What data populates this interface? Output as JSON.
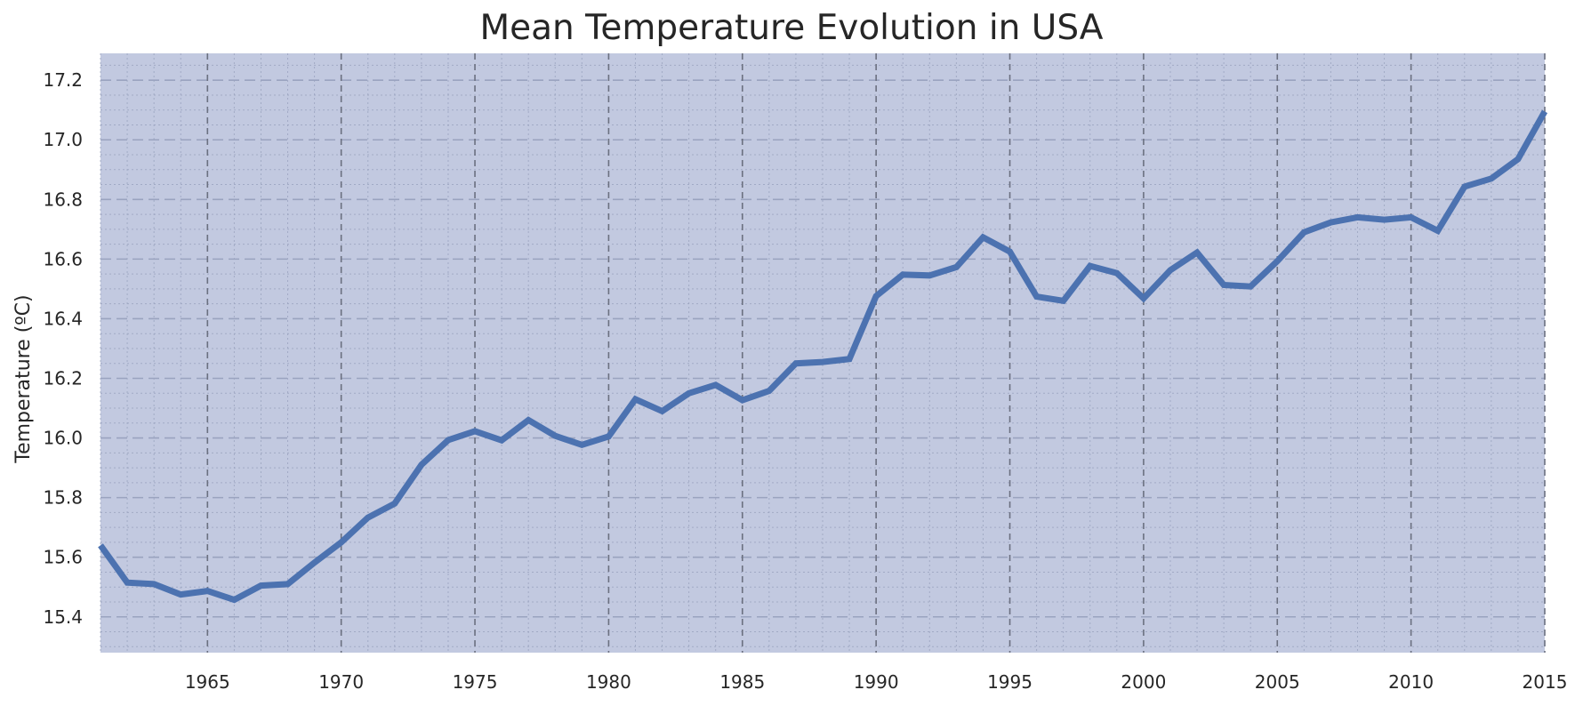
{
  "chart_data": {
    "type": "line",
    "title": "Mean Temperature Evolution in USA",
    "xlabel": "",
    "ylabel": "Temperature (ºC)",
    "xlim": [
      1961,
      2015
    ],
    "ylim": [
      15.28,
      17.29
    ],
    "x_ticks": [
      1965,
      1970,
      1975,
      1980,
      1985,
      1990,
      1995,
      2000,
      2005,
      2010,
      2015
    ],
    "y_ticks": [
      15.4,
      15.6,
      15.8,
      16.0,
      16.2,
      16.4,
      16.6,
      16.8,
      17.0,
      17.2
    ],
    "grid": true,
    "series": [
      {
        "name": "",
        "x": [
          1961,
          1962,
          1963,
          1964,
          1965,
          1966,
          1967,
          1968,
          1969,
          1970,
          1971,
          1972,
          1973,
          1974,
          1975,
          1976,
          1977,
          1978,
          1979,
          1980,
          1981,
          1982,
          1983,
          1984,
          1985,
          1986,
          1987,
          1988,
          1989,
          1990,
          1991,
          1992,
          1993,
          1994,
          1995,
          1996,
          1997,
          1998,
          1999,
          2000,
          2001,
          2002,
          2003,
          2004,
          2005,
          2006,
          2007,
          2008,
          2009,
          2010,
          2011,
          2012,
          2013,
          2014,
          2015
        ],
        "y": [
          15.64,
          15.515,
          15.51,
          15.475,
          15.487,
          15.457,
          15.505,
          15.51,
          15.582,
          15.65,
          15.733,
          15.78,
          15.91,
          15.993,
          16.023,
          15.992,
          16.06,
          16.007,
          15.977,
          16.005,
          16.13,
          16.09,
          16.15,
          16.178,
          16.127,
          16.158,
          16.25,
          16.255,
          16.265,
          16.476,
          16.548,
          16.545,
          16.573,
          16.673,
          16.625,
          16.474,
          16.46,
          16.577,
          16.553,
          16.468,
          16.563,
          16.622,
          16.513,
          16.508,
          16.593,
          16.69,
          16.723,
          16.74,
          16.732,
          16.74,
          16.695,
          16.843,
          16.87,
          16.935,
          17.095
        ]
      }
    ],
    "colors": {
      "background": "#c2c9e0",
      "line": "#4c72b0",
      "major_x_grid": "#6b7080",
      "minor_grid": "#9aa3bf"
    }
  }
}
